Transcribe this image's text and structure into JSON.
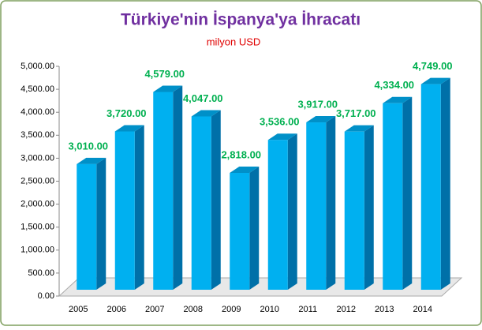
{
  "chart_data": {
    "type": "bar3d",
    "title": "Türkiye'nin İspanya'ya İhracatı",
    "subtitle": "milyon USD",
    "categories": [
      "2005",
      "2006",
      "2007",
      "2008",
      "2009",
      "2010",
      "2011",
      "2012",
      "2013",
      "2014"
    ],
    "values": [
      3010,
      3720,
      4579,
      4047,
      2818,
      3536,
      3917,
      3717,
      4334,
      4749
    ],
    "value_labels": [
      "3,010.00",
      "3,720.00",
      "4,579.00",
      "4,047.00",
      "2,818.00",
      "3,536.00",
      "3,917.00",
      "3,717.00",
      "4,334.00",
      "4,749.00"
    ],
    "color": "#00b0f0",
    "ylim": [
      0,
      5000
    ],
    "yticks": [
      {
        "value": 0,
        "label": "0.00"
      },
      {
        "value": 500,
        "label": "500.00"
      },
      {
        "value": 1000,
        "label": "1,000.00"
      },
      {
        "value": 1500,
        "label": "1,500.00"
      },
      {
        "value": 2000,
        "label": "2,000.00"
      },
      {
        "value": 2500,
        "label": "2,500.00"
      },
      {
        "value": 3000,
        "label": "3,000.00"
      },
      {
        "value": 3500,
        "label": "3,500.00"
      },
      {
        "value": 4000,
        "label": "4,000.00"
      },
      {
        "value": 4500,
        "label": "4,500.00"
      },
      {
        "value": 5000,
        "label": "5,000.00"
      }
    ]
  }
}
